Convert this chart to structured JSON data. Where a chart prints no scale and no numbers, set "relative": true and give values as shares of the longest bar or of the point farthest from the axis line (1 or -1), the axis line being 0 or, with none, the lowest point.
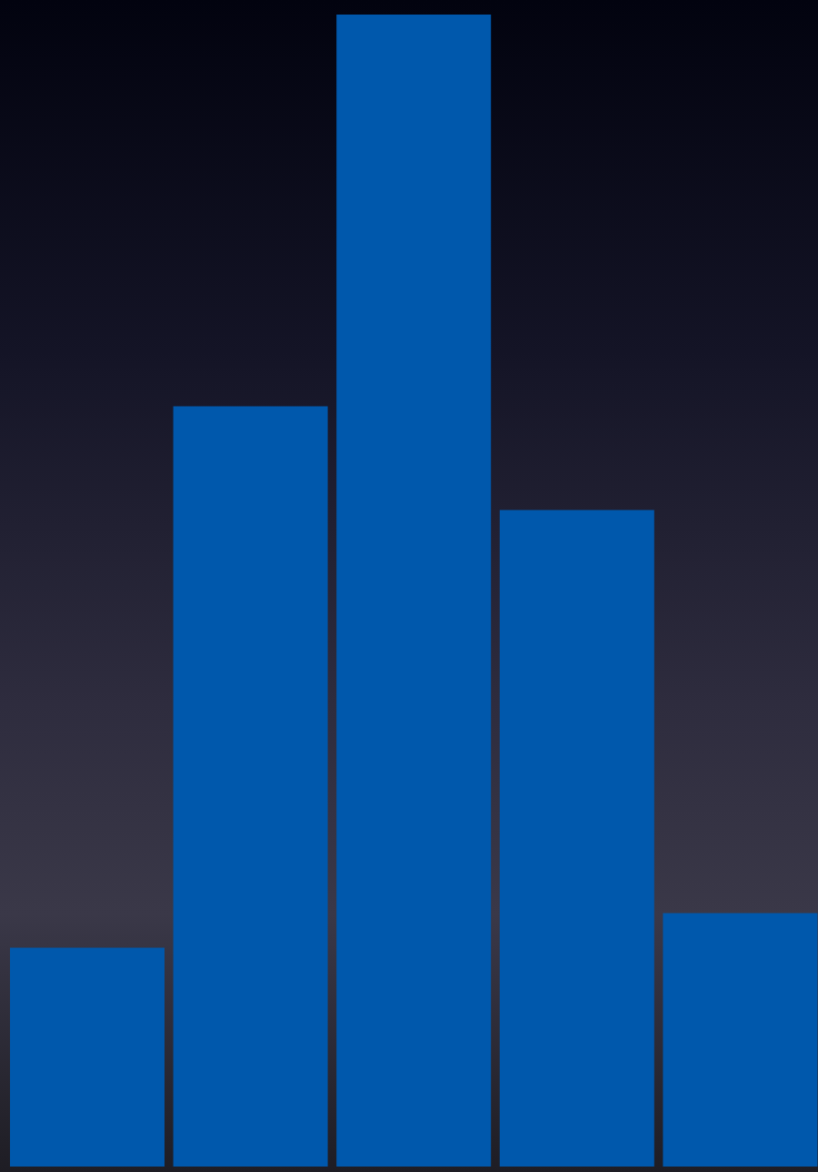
{
  "chart_data": {
    "type": "bar",
    "relative": true,
    "categories": [
      null,
      null,
      null,
      null,
      null
    ],
    "color": "#0058ac",
    "values": [
      0.19,
      0.66,
      1,
      0.57,
      0.22
    ]
  }
}
